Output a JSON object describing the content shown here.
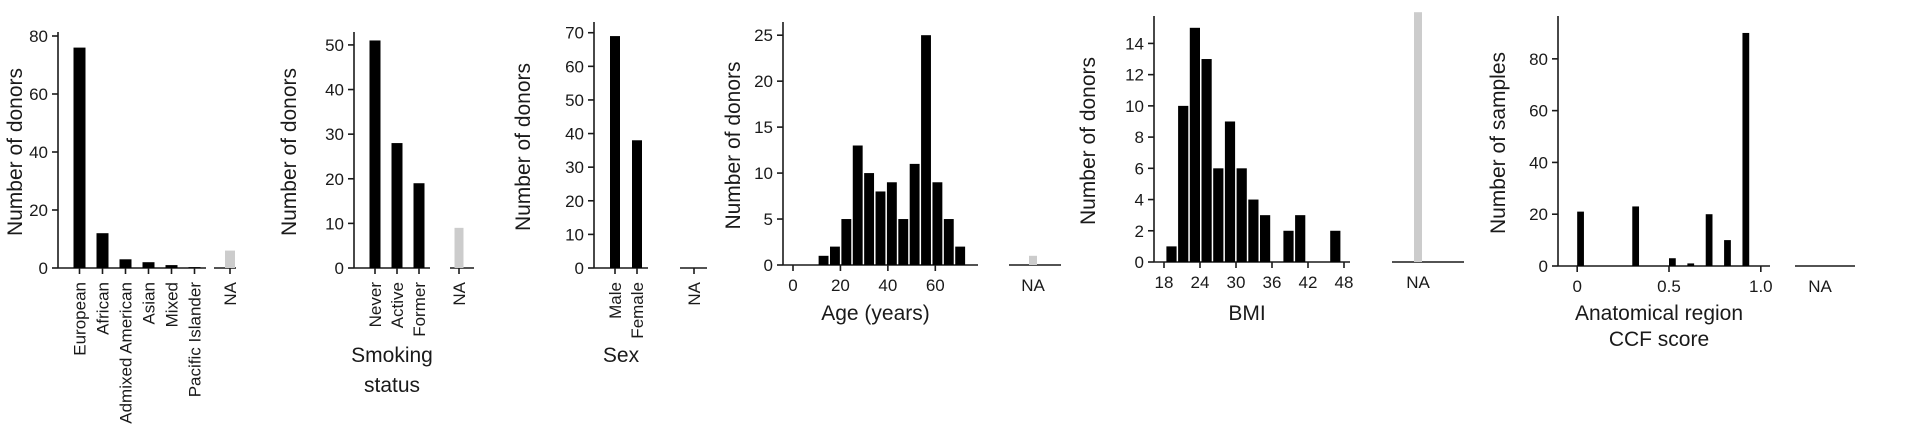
{
  "colors": {
    "bar": "#000000",
    "na_bar": "#cccccc",
    "axis": "#1a1a1a",
    "text": "#1a1a1a"
  },
  "chart_data": [
    {
      "type": "bar",
      "ylabel": "Number of donors",
      "xlabel": "",
      "ylim": [
        0,
        80
      ],
      "yticks": [
        0,
        20,
        40,
        60,
        80
      ],
      "categories": [
        "European",
        "African",
        "Admixed American",
        "Asian",
        "Mixed",
        "Pacific Islander"
      ],
      "values": [
        76,
        12,
        3,
        2,
        1,
        0.3
      ],
      "na": {
        "label": "NA",
        "value": 6
      }
    },
    {
      "type": "bar",
      "ylabel": "Number of donors",
      "xlabel": "Smoking status",
      "ylim": [
        0,
        52
      ],
      "yticks": [
        0,
        10,
        20,
        30,
        40,
        50
      ],
      "categories": [
        "Never",
        "Active",
        "Former"
      ],
      "values": [
        51,
        28,
        19
      ],
      "na": {
        "label": "NA",
        "value": 9
      }
    },
    {
      "type": "bar",
      "ylabel": "Number of donors",
      "xlabel": "Sex",
      "ylim": [
        0,
        72
      ],
      "yticks": [
        0,
        10,
        20,
        30,
        40,
        50,
        60,
        70
      ],
      "categories": [
        "Male",
        "Female"
      ],
      "values": [
        69,
        38
      ],
      "na": {
        "label": "NA",
        "value": 0
      }
    },
    {
      "type": "histogram",
      "ylabel": "Number of donors",
      "xlabel": "Age (years)",
      "xlim": [
        0,
        78
      ],
      "xticks": [
        0,
        20,
        40,
        60
      ],
      "ylim": [
        0,
        26
      ],
      "yticks": [
        0,
        5,
        10,
        15,
        20,
        25
      ],
      "bin_width": 4.8,
      "bins": [
        {
          "start": 10.8,
          "count": 1
        },
        {
          "start": 15.6,
          "count": 2
        },
        {
          "start": 20.4,
          "count": 5
        },
        {
          "start": 25.2,
          "count": 13
        },
        {
          "start": 30.0,
          "count": 10
        },
        {
          "start": 34.8,
          "count": 8
        },
        {
          "start": 39.6,
          "count": 9
        },
        {
          "start": 44.4,
          "count": 5
        },
        {
          "start": 49.2,
          "count": 11
        },
        {
          "start": 54.0,
          "count": 25
        },
        {
          "start": 58.8,
          "count": 9
        },
        {
          "start": 63.6,
          "count": 5
        },
        {
          "start": 68.4,
          "count": 2
        }
      ],
      "na": {
        "label": "NA",
        "value": 1
      }
    },
    {
      "type": "histogram",
      "ylabel": "Number of donors",
      "xlabel": "BMI",
      "xlim": [
        18,
        49
      ],
      "xticks": [
        18,
        24,
        30,
        36,
        42,
        48
      ],
      "ylim": [
        0,
        15.5
      ],
      "yticks": [
        0,
        2,
        4,
        6,
        8,
        10,
        12,
        14
      ],
      "bin_width": 1.95,
      "bins": [
        {
          "start": 18.4,
          "count": 1
        },
        {
          "start": 20.35,
          "count": 10
        },
        {
          "start": 22.3,
          "count": 15
        },
        {
          "start": 24.25,
          "count": 13
        },
        {
          "start": 26.2,
          "count": 6
        },
        {
          "start": 28.15,
          "count": 9
        },
        {
          "start": 30.1,
          "count": 6
        },
        {
          "start": 32.05,
          "count": 4
        },
        {
          "start": 34.0,
          "count": 3
        },
        {
          "start": 37.9,
          "count": 2
        },
        {
          "start": 39.85,
          "count": 3
        },
        {
          "start": 45.7,
          "count": 2
        }
      ],
      "na": {
        "label": "NA",
        "value": 16
      }
    },
    {
      "type": "histogram",
      "ylabel": "Number of samples",
      "xlabel": "Anatomical region CCF score",
      "xlabel_lines": [
        "Anatomical region",
        "CCF score"
      ],
      "xlim": [
        -0.05,
        1.05
      ],
      "xticks": [
        0,
        0.5,
        1.0
      ],
      "xtick_labels": [
        "0",
        "0.5",
        "1.0"
      ],
      "ylim": [
        0,
        95
      ],
      "yticks": [
        0,
        20,
        40,
        60,
        80
      ],
      "bin_width": 0.045,
      "bins": [
        {
          "start": 0.0,
          "count": 21
        },
        {
          "start": 0.3,
          "count": 23
        },
        {
          "start": 0.5,
          "count": 3
        },
        {
          "start": 0.6,
          "count": 1
        },
        {
          "start": 0.7,
          "count": 20
        },
        {
          "start": 0.8,
          "count": 10
        },
        {
          "start": 0.9,
          "count": 90
        }
      ],
      "na": {
        "label": "NA",
        "value": 0
      }
    }
  ]
}
